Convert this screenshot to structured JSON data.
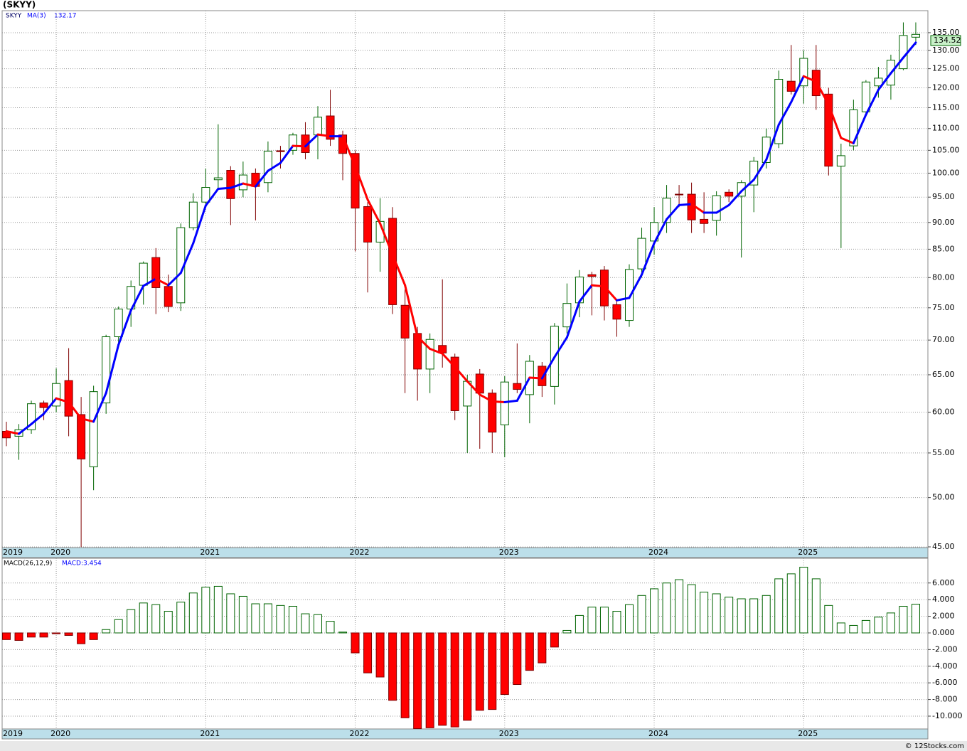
{
  "chart_data": [
    {
      "type": "candlestick",
      "title": "(SKYY)",
      "log_scale": true,
      "grid": true,
      "categories": [
        "2019",
        null,
        null,
        null,
        "2020",
        null,
        null,
        null,
        null,
        null,
        null,
        null,
        null,
        null,
        null,
        null,
        "2021",
        null,
        null,
        null,
        null,
        null,
        null,
        null,
        null,
        null,
        null,
        null,
        "2022",
        null,
        null,
        null,
        null,
        null,
        null,
        null,
        null,
        null,
        null,
        null,
        "2023",
        null,
        null,
        null,
        null,
        null,
        null,
        null,
        null,
        null,
        null,
        null,
        "2024",
        null,
        null,
        null,
        null,
        null,
        null,
        null,
        null,
        null,
        null,
        null,
        "2025",
        null,
        null,
        null,
        null,
        null,
        null,
        null,
        null,
        null
      ],
      "ylim": [
        44.93,
        141.5
      ],
      "yticks": [
        {
          "value": 45,
          "label": "45.00"
        },
        {
          "value": 50,
          "label": "50.00"
        },
        {
          "value": 55,
          "label": "55.00"
        },
        {
          "value": 60,
          "label": "60.00"
        },
        {
          "value": 65,
          "label": "65.00"
        },
        {
          "value": 70,
          "label": "70.00"
        },
        {
          "value": 75,
          "label": "75.00"
        },
        {
          "value": 80,
          "label": "80.00"
        },
        {
          "value": 85,
          "label": "85.00"
        },
        {
          "value": 90,
          "label": "90.00"
        },
        {
          "value": 95,
          "label": "95.00"
        },
        {
          "value": 100,
          "label": "100.00"
        },
        {
          "value": 105,
          "label": "105.00"
        },
        {
          "value": 110,
          "label": "110.00"
        },
        {
          "value": 115,
          "label": "115.00"
        },
        {
          "value": 120,
          "label": "120.00"
        },
        {
          "value": 125,
          "label": "125.00"
        },
        {
          "value": 130,
          "label": "130.00"
        },
        {
          "value": 135,
          "label": "135.00"
        }
      ],
      "series": [
        {
          "name": "SKYY",
          "up_color": "#006400",
          "down_color": "#ff0000",
          "open": [
            57.6,
            57.0,
            57.8,
            61.2,
            60.8,
            64.2,
            59.7,
            53.4,
            61.2,
            70.5,
            74.8,
            78.7,
            83.5,
            78.5,
            75.8,
            89.0,
            94.0,
            98.6,
            100.6,
            96.5,
            100,
            98,
            104.9,
            105,
            108.5,
            108.5,
            113,
            108.5,
            104.3,
            93.1,
            86.3,
            90.8,
            75.4,
            71,
            65.8,
            69.2,
            67.5,
            60.8,
            65.1,
            62.5,
            58.4,
            63.8,
            62.3,
            66.2,
            63.4,
            72,
            75.8,
            80.5,
            81.3,
            75.5,
            73,
            81.5,
            86.5,
            90,
            95.6,
            95.6,
            90.6,
            90.4,
            96,
            95.2,
            97.5,
            102.3,
            106.5,
            121.7,
            120.5,
            124.6,
            118.4,
            101.5,
            106,
            114,
            120.5,
            120.7,
            125,
            133.7
          ],
          "high": [
            58.8,
            58.5,
            61.5,
            61.5,
            65.9,
            68.8,
            62.0,
            63.5,
            70.8,
            75.2,
            79.5,
            82.8,
            85.2,
            80.5,
            89.8,
            95.8,
            101,
            111,
            101.5,
            102.5,
            101,
            107,
            106,
            109,
            111.5,
            115.4,
            119.5,
            109.5,
            105,
            94,
            94.8,
            93,
            78,
            72,
            71,
            79.7,
            68,
            65,
            65.8,
            63,
            64.8,
            69.5,
            67.8,
            66.8,
            72.6,
            79,
            81.3,
            81,
            82,
            76,
            82.3,
            89,
            93,
            97.5,
            97.5,
            98,
            96,
            96.2,
            96.6,
            98.5,
            103.5,
            110,
            124.5,
            131.5,
            130,
            131.5,
            120,
            106.5,
            117,
            122,
            125.5,
            128.8,
            138,
            138
          ],
          "low": [
            55.8,
            54.2,
            57.3,
            59.0,
            60.0,
            57.0,
            45.0,
            50.8,
            59.8,
            69,
            72,
            75.5,
            74,
            74.3,
            74.5,
            88.5,
            93,
            96.5,
            89.5,
            95,
            90.4,
            96,
            101,
            104,
            103,
            103,
            106,
            98.5,
            84.6,
            77.5,
            81,
            74,
            62.5,
            61.5,
            62.5,
            66,
            59,
            55,
            55.5,
            55,
            54.5,
            62.5,
            58.6,
            62,
            61,
            71,
            73.5,
            73.8,
            73,
            70.5,
            72,
            80,
            84,
            88,
            93,
            88,
            88,
            87.5,
            94,
            83.5,
            92,
            101,
            105.5,
            118.3,
            116,
            114.5,
            99.5,
            85.2,
            105,
            113,
            117.5,
            117,
            124.6,
            131.5
          ],
          "close": [
            56.8,
            57.8,
            61.1,
            60.6,
            63.8,
            59.5,
            54.3,
            62.7,
            70.5,
            74.8,
            78.5,
            82.5,
            78.3,
            75.2,
            89.0,
            94.0,
            97.0,
            99.0,
            94.7,
            99.6,
            97.2,
            104.8,
            104.7,
            108.5,
            104.5,
            112.7,
            107.5,
            104.3,
            92.8,
            86.3,
            90.2,
            75.5,
            70.3,
            65.8,
            70.1,
            68.1,
            60.2,
            64.1,
            62.5,
            57.5,
            64,
            63.0,
            66.9,
            63.5,
            72.1,
            75.7,
            80.1,
            80.2,
            75.3,
            73.2,
            81.4,
            87,
            90,
            94.8,
            95.5,
            90.5,
            89.8,
            95.3,
            95.2,
            98,
            102.6,
            108,
            122.2,
            119.1,
            127.8,
            118,
            101.5,
            103.8,
            114.5,
            121.5,
            122.5,
            127.3,
            134.2,
            134.52
          ]
        },
        {
          "name": "MA(3)",
          "type": "line",
          "up_color": "#0000ff",
          "down_color": "#ff0000",
          "values": [
            57.6,
            57.3,
            58.5,
            59.8,
            61.8,
            61.3,
            59.2,
            58.8,
            62.5,
            69.3,
            74.6,
            78.6,
            79.8,
            78.7,
            80.8,
            86.1,
            93.3,
            96.7,
            96.9,
            97.8,
            97.2,
            100.5,
            102.2,
            106.0,
            105.9,
            108.6,
            108.2,
            108.2,
            101.5,
            94.5,
            89.8,
            84.0,
            78.7,
            70.5,
            68.7,
            68.0,
            66.1,
            64.1,
            62.3,
            61.4,
            61.3,
            61.5,
            64.6,
            64.5,
            67.5,
            70.4,
            76.0,
            78.7,
            78.5,
            76.2,
            76.6,
            80.5,
            86.1,
            90.6,
            93.4,
            93.6,
            91.9,
            91.9,
            93.4,
            96.2,
            98.6,
            102.9,
            110.9,
            116.4,
            123.0,
            121.6,
            115.8,
            107.8,
            106.6,
            113.3,
            119.5,
            123.8,
            128.0,
            132.17
          ]
        }
      ]
    },
    {
      "type": "bar",
      "grid": true,
      "source": "© 12Stocks.com",
      "ylim": [
        -11.54,
        8.97
      ],
      "yticks": [
        {
          "value": -10,
          "label": "-10.000"
        },
        {
          "value": -8,
          "label": "-8.000"
        },
        {
          "value": -6,
          "label": "-6.000"
        },
        {
          "value": -4,
          "label": "-4.000"
        },
        {
          "value": -2,
          "label": "-2.000"
        },
        {
          "value": 0,
          "label": "0.000"
        },
        {
          "value": 2,
          "label": "2.000"
        },
        {
          "value": 4,
          "label": "4.000"
        },
        {
          "value": 6,
          "label": "6.000"
        }
      ],
      "series": [
        {
          "name": "MACD(26,12,9)",
          "up_color": "#006400",
          "down_color": "#ff0000",
          "values": [
            -0.8,
            -0.9,
            -0.5,
            -0.5,
            -0.1,
            -0.3,
            -1.3,
            -0.8,
            0.4,
            1.6,
            2.8,
            3.6,
            3.4,
            2.6,
            3.7,
            4.8,
            5.5,
            5.6,
            4.7,
            4.4,
            3.5,
            3.5,
            3.3,
            3.2,
            2.3,
            2.2,
            1.4,
            0.1,
            -2.4,
            -4.8,
            -5.3,
            -8.1,
            -10.2,
            -11.5,
            -11.4,
            -11.1,
            -11.3,
            -10.5,
            -9.3,
            -9.2,
            -7.4,
            -6.2,
            -4.5,
            -3.6,
            -1.7,
            0.3,
            2.1,
            3.1,
            3.1,
            2.6,
            3.4,
            4.5,
            5.3,
            6.0,
            6.4,
            5.8,
            4.9,
            4.7,
            4.3,
            4.1,
            4.1,
            4.5,
            6.5,
            7.1,
            7.9,
            6.5,
            3.3,
            1.2,
            0.9,
            1.5,
            1.9,
            2.4,
            3.2,
            3.454
          ],
          "value_labels": [
            null,
            null,
            null,
            null,
            null,
            null,
            null,
            null,
            null,
            null,
            null,
            null,
            null,
            null,
            null,
            null,
            null,
            null,
            null,
            null,
            null,
            null,
            null,
            null,
            null,
            null,
            null,
            null,
            null,
            null,
            null,
            null,
            null,
            null,
            null,
            null,
            null,
            null,
            null,
            null,
            null,
            null,
            null,
            null,
            null,
            null,
            null,
            null,
            null,
            null,
            null,
            null,
            null,
            null,
            null,
            null,
            null,
            null,
            null,
            null,
            null,
            null,
            null,
            null,
            null,
            null,
            null,
            null,
            null,
            null,
            null,
            null,
            null,
            "MACD:3.454"
          ]
        }
      ]
    }
  ]
}
